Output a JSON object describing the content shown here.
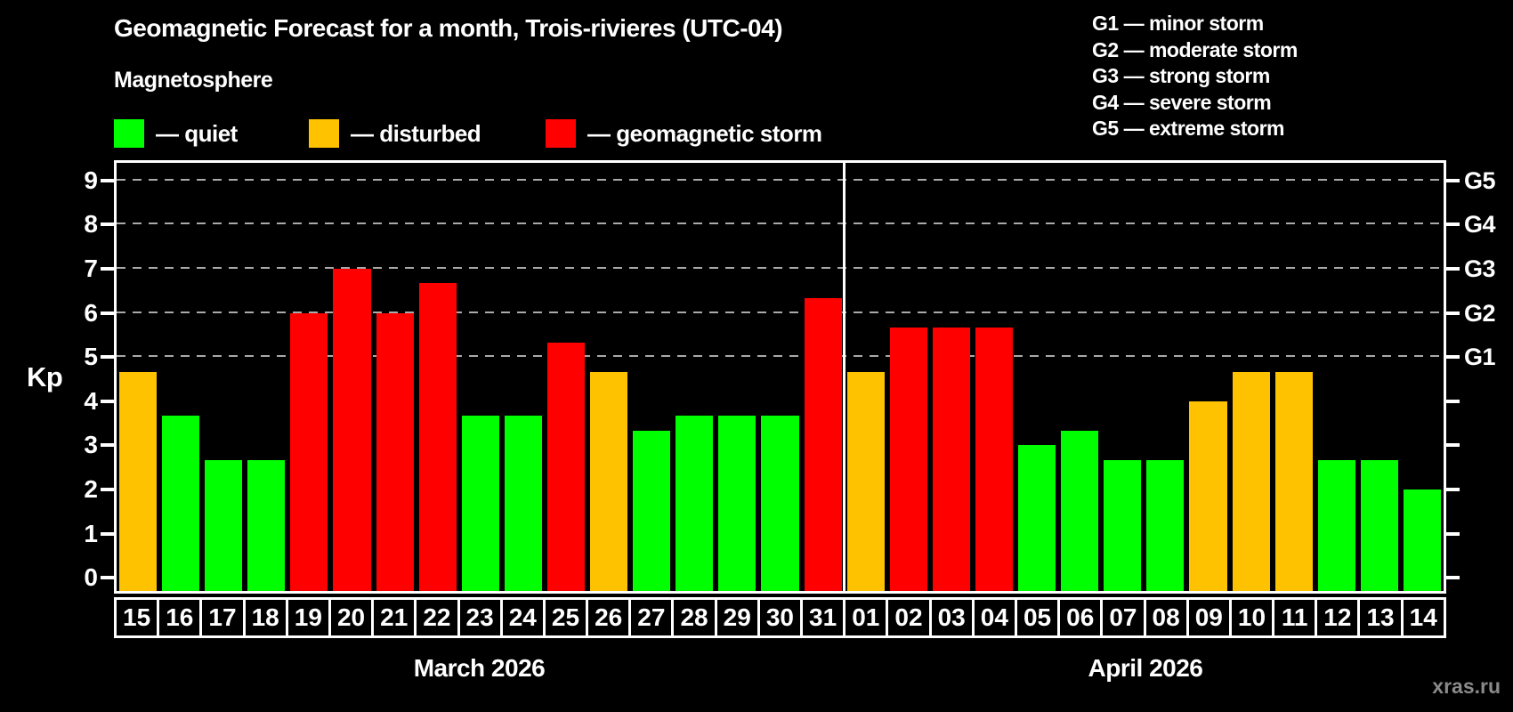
{
  "header": {
    "title": "Geomagnetic Forecast for a month, Trois-rivieres (UTC-04)",
    "subtitle": "Magnetosphere"
  },
  "legend": {
    "items": [
      {
        "key": "quiet",
        "label": "— quiet"
      },
      {
        "key": "disturbed",
        "label": "— disturbed"
      },
      {
        "key": "storm",
        "label": "— geomagnetic storm"
      }
    ]
  },
  "g_legend": {
    "items": [
      {
        "label": "G1 — minor storm"
      },
      {
        "label": "G2 — moderate storm"
      },
      {
        "label": "G3 — strong storm"
      },
      {
        "label": "G4 — severe storm"
      },
      {
        "label": "G5 — extreme storm"
      }
    ]
  },
  "watermark": "xras.ru",
  "chart_data": {
    "type": "bar",
    "title": "Geomagnetic Forecast for a month, Trois-rivieres (UTC-04)",
    "ylabel": "Kp",
    "ylim": [
      -0.3,
      9.4
    ],
    "yticks": [
      0,
      1,
      2,
      3,
      4,
      5,
      6,
      7,
      8,
      9
    ],
    "grid_levels": [
      5,
      6,
      7,
      8,
      9
    ],
    "grid_on": true,
    "right_axis": [
      {
        "kp": 5,
        "label": "G1"
      },
      {
        "kp": 6,
        "label": "G2"
      },
      {
        "kp": 7,
        "label": "G3"
      },
      {
        "kp": 8,
        "label": "G4"
      },
      {
        "kp": 9,
        "label": "G5"
      }
    ],
    "status_colors": {
      "quiet": "#00ff00",
      "disturbed": "#ffc200",
      "storm": "#ff0000"
    },
    "months": [
      {
        "label": "March 2026",
        "days": [
          {
            "day": "15",
            "kp": 4.67,
            "status": "disturbed"
          },
          {
            "day": "16",
            "kp": 3.67,
            "status": "quiet"
          },
          {
            "day": "17",
            "kp": 2.67,
            "status": "quiet"
          },
          {
            "day": "18",
            "kp": 2.67,
            "status": "quiet"
          },
          {
            "day": "19",
            "kp": 6.0,
            "status": "storm"
          },
          {
            "day": "20",
            "kp": 7.0,
            "status": "storm"
          },
          {
            "day": "21",
            "kp": 6.0,
            "status": "storm"
          },
          {
            "day": "22",
            "kp": 6.67,
            "status": "storm"
          },
          {
            "day": "23",
            "kp": 3.67,
            "status": "quiet"
          },
          {
            "day": "24",
            "kp": 3.67,
            "status": "quiet"
          },
          {
            "day": "25",
            "kp": 5.33,
            "status": "storm"
          },
          {
            "day": "26",
            "kp": 4.67,
            "status": "disturbed"
          },
          {
            "day": "27",
            "kp": 3.33,
            "status": "quiet"
          },
          {
            "day": "28",
            "kp": 3.67,
            "status": "quiet"
          },
          {
            "day": "29",
            "kp": 3.67,
            "status": "quiet"
          },
          {
            "day": "30",
            "kp": 3.67,
            "status": "quiet"
          },
          {
            "day": "31",
            "kp": 6.33,
            "status": "storm"
          }
        ]
      },
      {
        "label": "April 2026",
        "days": [
          {
            "day": "01",
            "kp": 4.67,
            "status": "disturbed"
          },
          {
            "day": "02",
            "kp": 5.67,
            "status": "storm"
          },
          {
            "day": "03",
            "kp": 5.67,
            "status": "storm"
          },
          {
            "day": "04",
            "kp": 5.67,
            "status": "storm"
          },
          {
            "day": "05",
            "kp": 3.0,
            "status": "quiet"
          },
          {
            "day": "06",
            "kp": 3.33,
            "status": "quiet"
          },
          {
            "day": "07",
            "kp": 2.67,
            "status": "quiet"
          },
          {
            "day": "08",
            "kp": 2.67,
            "status": "quiet"
          },
          {
            "day": "09",
            "kp": 4.0,
            "status": "disturbed"
          },
          {
            "day": "10",
            "kp": 4.67,
            "status": "disturbed"
          },
          {
            "day": "11",
            "kp": 4.67,
            "status": "disturbed"
          },
          {
            "day": "12",
            "kp": 2.67,
            "status": "quiet"
          },
          {
            "day": "13",
            "kp": 2.67,
            "status": "quiet"
          },
          {
            "day": "14",
            "kp": 2.0,
            "status": "quiet"
          }
        ]
      }
    ]
  }
}
